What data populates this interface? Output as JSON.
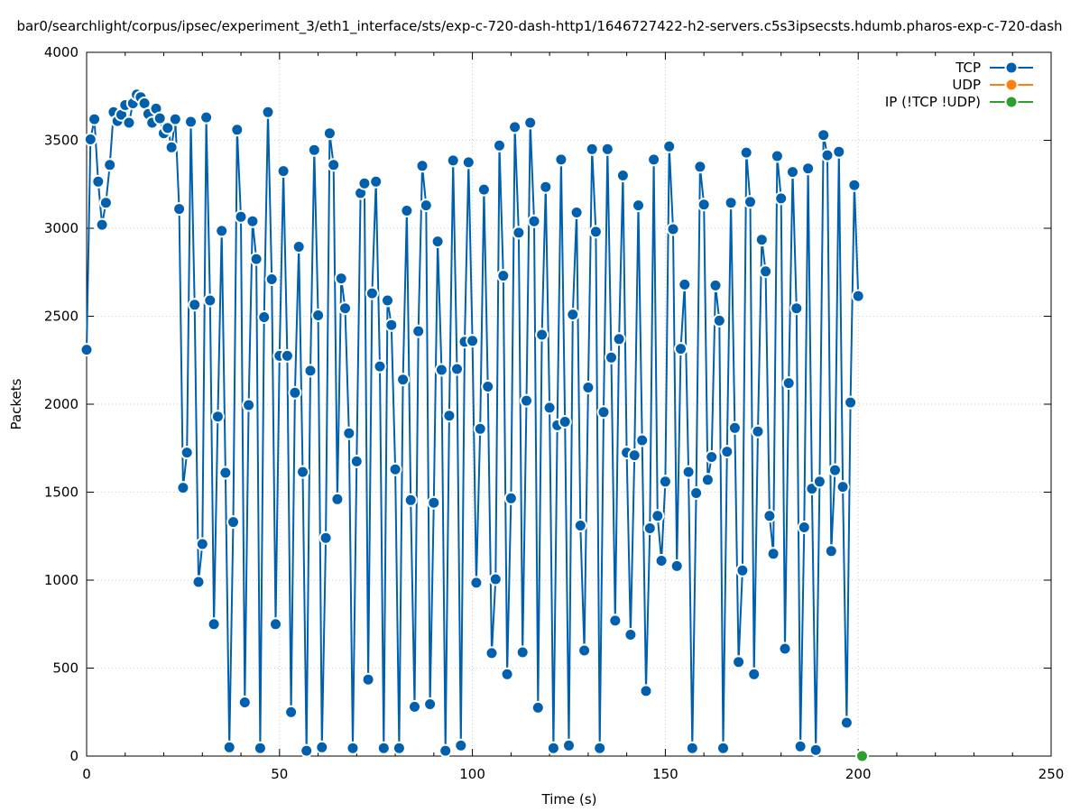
{
  "chart_data": {
    "type": "line",
    "title": "bar0/searchlight/corpus/ipsec/experiment_3/eth1_interface/sts/exp-c-720-dash-http1/1646727422-h2-servers.c5s3ipsecsts.hdumb.pharos-exp-c-720-dash",
    "xlabel": "Time (s)",
    "ylabel": "Packets",
    "xlim": [
      0,
      250
    ],
    "ylim": [
      0,
      4000
    ],
    "xticks": [
      0,
      50,
      100,
      150,
      200,
      250
    ],
    "yticks": [
      0,
      500,
      1000,
      1500,
      2000,
      2500,
      3000,
      3500,
      4000
    ],
    "grid": true,
    "legend_position": "top-right",
    "series": [
      {
        "name": "TCP",
        "color": "#0060ad",
        "x": [
          0,
          1,
          2,
          3,
          4,
          5,
          6,
          7,
          8,
          9,
          10,
          11,
          12,
          13,
          14,
          15,
          16,
          17,
          18,
          19,
          20,
          21,
          22,
          23,
          24,
          25,
          26,
          27,
          28,
          29,
          30,
          31,
          32,
          33,
          34,
          35,
          36,
          37,
          38,
          39,
          40,
          41,
          42,
          43,
          44,
          45,
          46,
          47,
          48,
          49,
          50,
          51,
          52,
          53,
          54,
          55,
          56,
          57,
          58,
          59,
          60,
          61,
          62,
          63,
          64,
          65,
          66,
          67,
          68,
          69,
          70,
          71,
          72,
          73,
          74,
          75,
          76,
          77,
          78,
          79,
          80,
          81,
          82,
          83,
          84,
          85,
          86,
          87,
          88,
          89,
          90,
          91,
          92,
          93,
          94,
          95,
          96,
          97,
          98,
          99,
          100,
          101,
          102,
          103,
          104,
          105,
          106,
          107,
          108,
          109,
          110,
          111,
          112,
          113,
          114,
          115,
          116,
          117,
          118,
          119,
          120,
          121,
          122,
          123,
          124,
          125,
          126,
          127,
          128,
          129,
          130,
          131,
          132,
          133,
          134,
          135,
          136,
          137,
          138,
          139,
          140,
          141,
          142,
          143,
          144,
          145,
          146,
          147,
          148,
          149,
          150,
          151,
          152,
          153,
          154,
          155,
          156,
          157,
          158,
          159,
          160,
          161,
          162,
          163,
          164,
          165,
          166,
          167,
          168,
          169,
          170,
          171,
          172,
          173,
          174,
          175,
          176,
          177,
          178,
          179,
          180,
          181,
          182,
          183,
          184,
          185,
          186,
          187,
          188,
          189,
          190,
          191,
          192,
          193,
          194,
          195,
          196,
          197,
          198,
          199,
          200
        ],
        "y": [
          2310,
          3505,
          3620,
          3265,
          3020,
          3145,
          3360,
          3660,
          3610,
          3645,
          3700,
          3600,
          3710,
          3760,
          3745,
          3710,
          3650,
          3600,
          3680,
          3625,
          3540,
          3570,
          3460,
          3620,
          3110,
          1525,
          1725,
          3605,
          2565,
          990,
          1205,
          3630,
          2590,
          750,
          1930,
          2985,
          1610,
          50,
          1330,
          3560,
          3065,
          305,
          1995,
          3040,
          2825,
          45,
          2495,
          3660,
          2710,
          750,
          2275,
          3325,
          2275,
          250,
          2065,
          2895,
          1615,
          30,
          2190,
          3445,
          2505,
          50,
          1240,
          3540,
          3360,
          1460,
          2715,
          2545,
          1835,
          45,
          1675,
          3200,
          3255,
          435,
          2630,
          3265,
          2215,
          45,
          2590,
          2450,
          1630,
          45,
          2140,
          3100,
          1455,
          280,
          2415,
          3355,
          3130,
          295,
          1440,
          2925,
          2195,
          30,
          1935,
          3385,
          2200,
          60,
          2355,
          3375,
          2360,
          985,
          1860,
          3220,
          2100,
          585,
          1005,
          3470,
          2730,
          465,
          1465,
          3575,
          2975,
          590,
          2020,
          3600,
          3040,
          275,
          2395,
          3235,
          1980,
          45,
          1880,
          3390,
          1900,
          60,
          2510,
          3090,
          1310,
          600,
          2095,
          3450,
          2980,
          45,
          1955,
          3450,
          2265,
          770,
          2370,
          3300,
          1725,
          690,
          1710,
          3130,
          1795,
          370,
          1295,
          3390,
          1365,
          1110,
          1560,
          3465,
          2995,
          1080,
          2315,
          2680,
          1615,
          45,
          1495,
          3350,
          3135,
          1570,
          1700,
          2675,
          2475,
          45,
          1730,
          3145,
          1865,
          535,
          1055,
          3430,
          3150,
          465,
          1845,
          2935,
          2755,
          1365,
          1150,
          3410,
          3170,
          610,
          2120,
          3320,
          2545,
          55,
          1300,
          3340,
          1520,
          35,
          1560,
          3530,
          3415,
          1165,
          1625,
          3435,
          1530,
          190,
          2010,
          3245,
          2615
        ]
      },
      {
        "name": "UDP",
        "color": "#ff7f0e",
        "x": [],
        "y": []
      },
      {
        "name": "IP (!TCP  !UDP)",
        "color": "#2ca02c",
        "x": [
          201
        ],
        "y": [
          0
        ]
      }
    ]
  }
}
